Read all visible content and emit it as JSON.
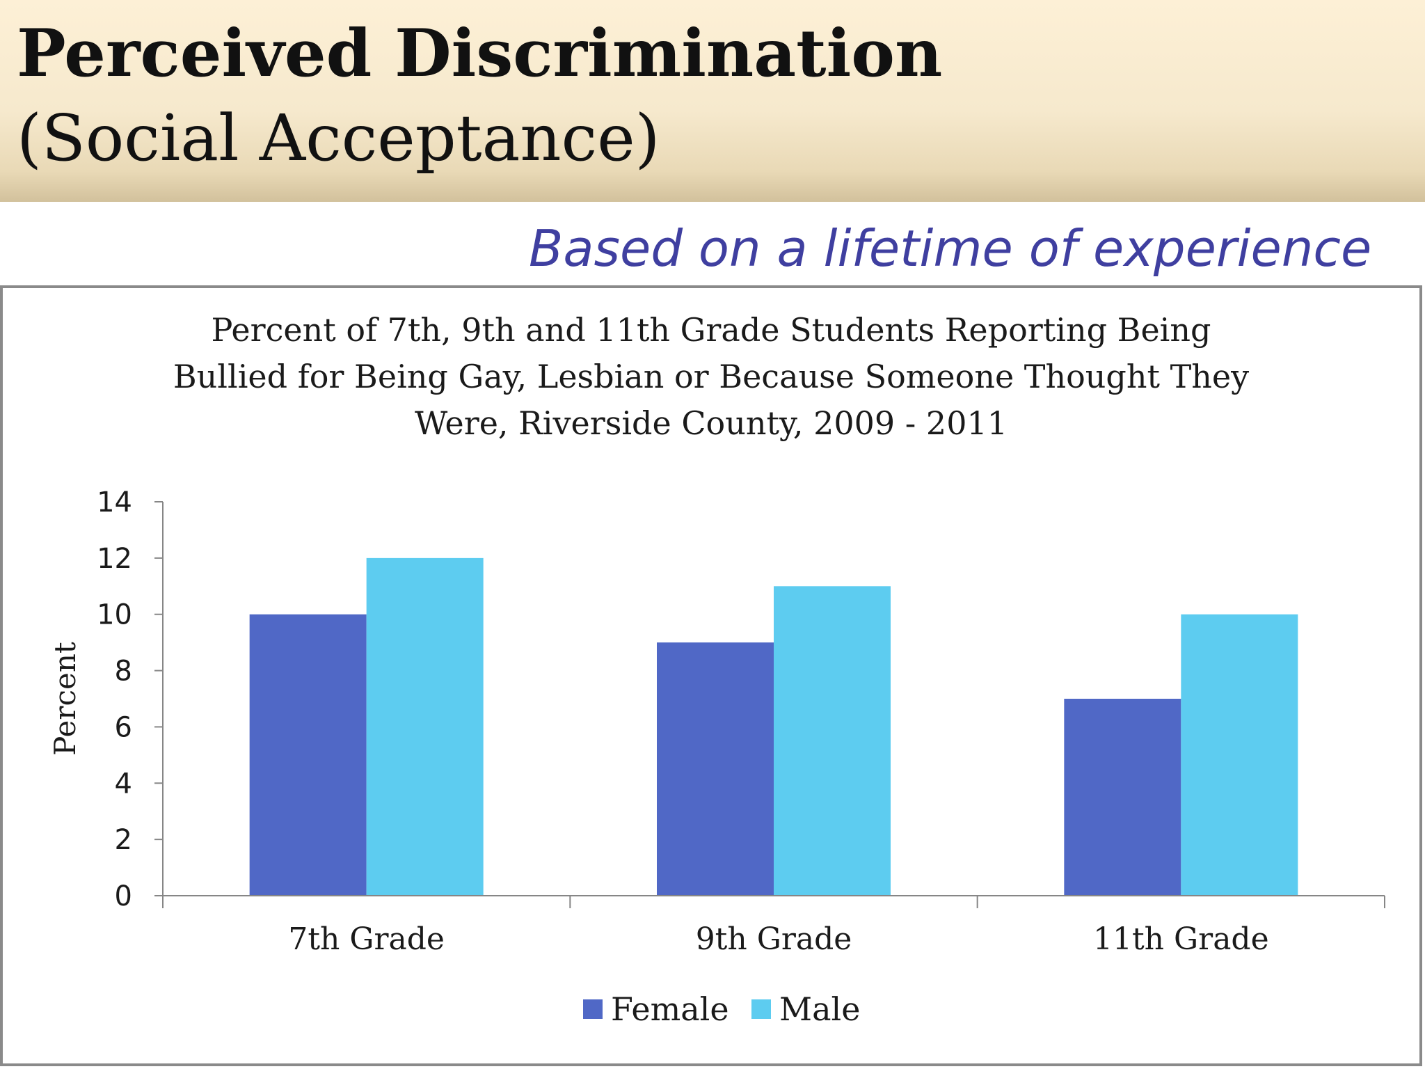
{
  "slide": {
    "title_line1": "Perceived Discrimination",
    "title_line2": "(Social Acceptance)",
    "subtitle": "Based on a lifetime of experience"
  },
  "colors": {
    "female": "#5068c6",
    "male": "#5dccf0",
    "subtitle": "#3f3fa0",
    "header_band": "#f6e9cd"
  },
  "chart_data": {
    "type": "bar",
    "title_lines": [
      "Percent of 7th, 9th and 11th Grade Students Reporting Being",
      "Bullied for Being Gay, Lesbian or Because Someone Thought They",
      "Were, Riverside County, 2009 - 2011"
    ],
    "categories": [
      "7th Grade",
      "9th Grade",
      "11th Grade"
    ],
    "series": [
      {
        "name": "Female",
        "values": [
          10,
          9,
          7
        ]
      },
      {
        "name": "Male",
        "values": [
          12,
          11,
          10
        ]
      }
    ],
    "xlabel": "",
    "ylabel": "Percent",
    "ylim": [
      0,
      14
    ],
    "yticks": [
      0,
      2,
      4,
      6,
      8,
      10,
      12,
      14
    ],
    "grid": false,
    "legend": "bottom"
  }
}
